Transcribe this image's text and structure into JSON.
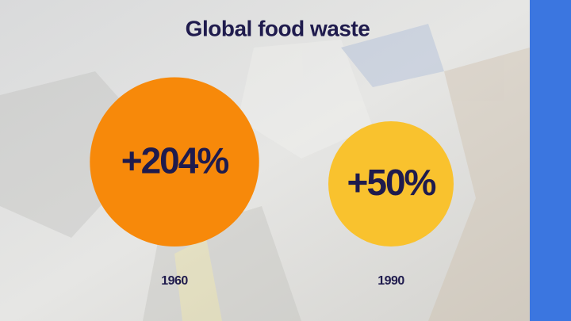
{
  "chart_data": {
    "type": "bubble",
    "title": "Global food waste",
    "categories": [
      "1960",
      "1990"
    ],
    "values": [
      204,
      50
    ],
    "value_labels": [
      "+204%",
      "+50%"
    ],
    "colors": [
      "#f7890a",
      "#f9c22e"
    ]
  }
}
